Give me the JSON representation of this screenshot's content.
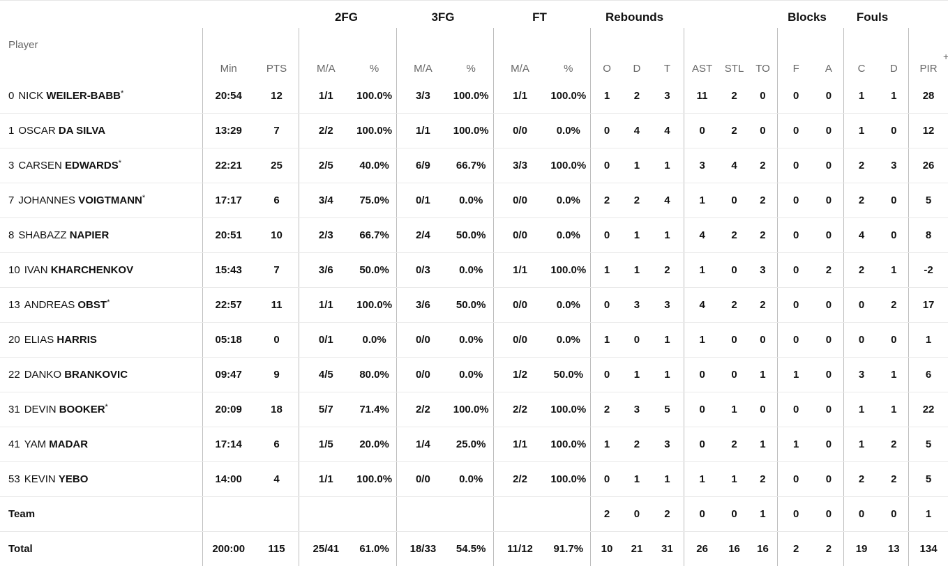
{
  "group_headers": {
    "fg2": "2FG",
    "fg3": "3FG",
    "ft": "FT",
    "rebounds": "Rebounds",
    "blocks": "Blocks",
    "fouls": "Fouls"
  },
  "columns": {
    "player": "Player",
    "min": "Min",
    "pts": "PTS",
    "fg2_ma": "M/A",
    "fg2_pct": "%",
    "fg3_ma": "M/A",
    "fg3_pct": "%",
    "ft_ma": "M/A",
    "ft_pct": "%",
    "reb_o": "O",
    "reb_d": "D",
    "reb_t": "T",
    "ast": "AST",
    "stl": "STL",
    "to": "TO",
    "blk_f": "F",
    "blk_a": "A",
    "foul_c": "C",
    "foul_d": "D",
    "pir": "PIR",
    "plus": "+"
  },
  "players": [
    {
      "num": "0",
      "first": "NICK",
      "last": "WEILER-BABB",
      "starter": "*",
      "min": "20:54",
      "pts": "12",
      "fg2_ma": "1/1",
      "fg2_pct": "100.0%",
      "fg3_ma": "3/3",
      "fg3_pct": "100.0%",
      "ft_ma": "1/1",
      "ft_pct": "100.0%",
      "reb_o": "1",
      "reb_d": "2",
      "reb_t": "3",
      "ast": "11",
      "stl": "2",
      "to": "0",
      "blk_f": "0",
      "blk_a": "0",
      "foul_c": "1",
      "foul_d": "1",
      "pir": "28"
    },
    {
      "num": "1",
      "first": "OSCAR",
      "last": "DA SILVA",
      "starter": "",
      "min": "13:29",
      "pts": "7",
      "fg2_ma": "2/2",
      "fg2_pct": "100.0%",
      "fg3_ma": "1/1",
      "fg3_pct": "100.0%",
      "ft_ma": "0/0",
      "ft_pct": "0.0%",
      "reb_o": "0",
      "reb_d": "4",
      "reb_t": "4",
      "ast": "0",
      "stl": "2",
      "to": "0",
      "blk_f": "0",
      "blk_a": "0",
      "foul_c": "1",
      "foul_d": "0",
      "pir": "12"
    },
    {
      "num": "3",
      "first": "CARSEN",
      "last": "EDWARDS",
      "starter": "*",
      "min": "22:21",
      "pts": "25",
      "fg2_ma": "2/5",
      "fg2_pct": "40.0%",
      "fg3_ma": "6/9",
      "fg3_pct": "66.7%",
      "ft_ma": "3/3",
      "ft_pct": "100.0%",
      "reb_o": "0",
      "reb_d": "1",
      "reb_t": "1",
      "ast": "3",
      "stl": "4",
      "to": "2",
      "blk_f": "0",
      "blk_a": "0",
      "foul_c": "2",
      "foul_d": "3",
      "pir": "26"
    },
    {
      "num": "7",
      "first": "JOHANNES",
      "last": "VOIGTMANN",
      "starter": "*",
      "min": "17:17",
      "pts": "6",
      "fg2_ma": "3/4",
      "fg2_pct": "75.0%",
      "fg3_ma": "0/1",
      "fg3_pct": "0.0%",
      "ft_ma": "0/0",
      "ft_pct": "0.0%",
      "reb_o": "2",
      "reb_d": "2",
      "reb_t": "4",
      "ast": "1",
      "stl": "0",
      "to": "2",
      "blk_f": "0",
      "blk_a": "0",
      "foul_c": "2",
      "foul_d": "0",
      "pir": "5"
    },
    {
      "num": "8",
      "first": "SHABAZZ",
      "last": "NAPIER",
      "starter": "",
      "min": "20:51",
      "pts": "10",
      "fg2_ma": "2/3",
      "fg2_pct": "66.7%",
      "fg3_ma": "2/4",
      "fg3_pct": "50.0%",
      "ft_ma": "0/0",
      "ft_pct": "0.0%",
      "reb_o": "0",
      "reb_d": "1",
      "reb_t": "1",
      "ast": "4",
      "stl": "2",
      "to": "2",
      "blk_f": "0",
      "blk_a": "0",
      "foul_c": "4",
      "foul_d": "0",
      "pir": "8"
    },
    {
      "num": "10",
      "first": "IVAN",
      "last": "KHARCHENKOV",
      "starter": "",
      "min": "15:43",
      "pts": "7",
      "fg2_ma": "3/6",
      "fg2_pct": "50.0%",
      "fg3_ma": "0/3",
      "fg3_pct": "0.0%",
      "ft_ma": "1/1",
      "ft_pct": "100.0%",
      "reb_o": "1",
      "reb_d": "1",
      "reb_t": "2",
      "ast": "1",
      "stl": "0",
      "to": "3",
      "blk_f": "0",
      "blk_a": "2",
      "foul_c": "2",
      "foul_d": "1",
      "pir": "-2"
    },
    {
      "num": "13",
      "first": "ANDREAS",
      "last": "OBST",
      "starter": "*",
      "min": "22:57",
      "pts": "11",
      "fg2_ma": "1/1",
      "fg2_pct": "100.0%",
      "fg3_ma": "3/6",
      "fg3_pct": "50.0%",
      "ft_ma": "0/0",
      "ft_pct": "0.0%",
      "reb_o": "0",
      "reb_d": "3",
      "reb_t": "3",
      "ast": "4",
      "stl": "2",
      "to": "2",
      "blk_f": "0",
      "blk_a": "0",
      "foul_c": "0",
      "foul_d": "2",
      "pir": "17"
    },
    {
      "num": "20",
      "first": "ELIAS",
      "last": "HARRIS",
      "starter": "",
      "min": "05:18",
      "pts": "0",
      "fg2_ma": "0/1",
      "fg2_pct": "0.0%",
      "fg3_ma": "0/0",
      "fg3_pct": "0.0%",
      "ft_ma": "0/0",
      "ft_pct": "0.0%",
      "reb_o": "1",
      "reb_d": "0",
      "reb_t": "1",
      "ast": "1",
      "stl": "0",
      "to": "0",
      "blk_f": "0",
      "blk_a": "0",
      "foul_c": "0",
      "foul_d": "0",
      "pir": "1"
    },
    {
      "num": "22",
      "first": "DANKO",
      "last": "BRANKOVIC",
      "starter": "",
      "min": "09:47",
      "pts": "9",
      "fg2_ma": "4/5",
      "fg2_pct": "80.0%",
      "fg3_ma": "0/0",
      "fg3_pct": "0.0%",
      "ft_ma": "1/2",
      "ft_pct": "50.0%",
      "reb_o": "0",
      "reb_d": "1",
      "reb_t": "1",
      "ast": "0",
      "stl": "0",
      "to": "1",
      "blk_f": "1",
      "blk_a": "0",
      "foul_c": "3",
      "foul_d": "1",
      "pir": "6"
    },
    {
      "num": "31",
      "first": "DEVIN",
      "last": "BOOKER",
      "starter": "*",
      "min": "20:09",
      "pts": "18",
      "fg2_ma": "5/7",
      "fg2_pct": "71.4%",
      "fg3_ma": "2/2",
      "fg3_pct": "100.0%",
      "ft_ma": "2/2",
      "ft_pct": "100.0%",
      "reb_o": "2",
      "reb_d": "3",
      "reb_t": "5",
      "ast": "0",
      "stl": "1",
      "to": "0",
      "blk_f": "0",
      "blk_a": "0",
      "foul_c": "1",
      "foul_d": "1",
      "pir": "22"
    },
    {
      "num": "41",
      "first": "YAM",
      "last": "MADAR",
      "starter": "",
      "min": "17:14",
      "pts": "6",
      "fg2_ma": "1/5",
      "fg2_pct": "20.0%",
      "fg3_ma": "1/4",
      "fg3_pct": "25.0%",
      "ft_ma": "1/1",
      "ft_pct": "100.0%",
      "reb_o": "1",
      "reb_d": "2",
      "reb_t": "3",
      "ast": "0",
      "stl": "2",
      "to": "1",
      "blk_f": "1",
      "blk_a": "0",
      "foul_c": "1",
      "foul_d": "2",
      "pir": "5"
    },
    {
      "num": "53",
      "first": "KEVIN",
      "last": "YEBO",
      "starter": "",
      "min": "14:00",
      "pts": "4",
      "fg2_ma": "1/1",
      "fg2_pct": "100.0%",
      "fg3_ma": "0/0",
      "fg3_pct": "0.0%",
      "ft_ma": "2/2",
      "ft_pct": "100.0%",
      "reb_o": "0",
      "reb_d": "1",
      "reb_t": "1",
      "ast": "1",
      "stl": "1",
      "to": "2",
      "blk_f": "0",
      "blk_a": "0",
      "foul_c": "2",
      "foul_d": "2",
      "pir": "5"
    }
  ],
  "team": {
    "label": "Team",
    "min": "",
    "pts": "",
    "fg2_ma": "",
    "fg2_pct": "",
    "fg3_ma": "",
    "fg3_pct": "",
    "ft_ma": "",
    "ft_pct": "",
    "reb_o": "2",
    "reb_d": "0",
    "reb_t": "2",
    "ast": "0",
    "stl": "0",
    "to": "1",
    "blk_f": "0",
    "blk_a": "0",
    "foul_c": "0",
    "foul_d": "0",
    "pir": "1"
  },
  "total": {
    "label": "Total",
    "min": "200:00",
    "pts": "115",
    "fg2_ma": "25/41",
    "fg2_pct": "61.0%",
    "fg3_ma": "18/33",
    "fg3_pct": "54.5%",
    "ft_ma": "11/12",
    "ft_pct": "91.7%",
    "reb_o": "10",
    "reb_d": "21",
    "reb_t": "31",
    "ast": "26",
    "stl": "16",
    "to": "16",
    "blk_f": "2",
    "blk_a": "2",
    "foul_c": "19",
    "foul_d": "13",
    "pir": "134"
  }
}
